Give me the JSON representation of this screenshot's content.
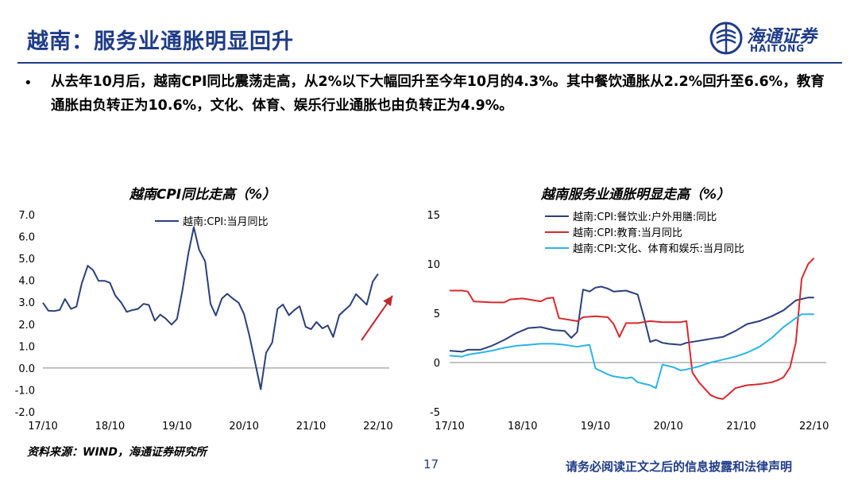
{
  "header": {
    "title": "越南：服务业通胀明显回升",
    "logo_name": "海通证券",
    "logo_en": "HAITONG"
  },
  "bullet": {
    "marker": "•",
    "text": "从去年10月后，越南CPI同比震荡走高，从2%以下大幅回升至今年10月的4.3%。其中餐饮通胀从2.2%回升至6.6%，教育通胀由负转正为10.6%，文化、体育、娱乐行业通胀也由负转正为4.9%。"
  },
  "footer": {
    "source": "资料来源：WIND，海通证券研究所",
    "page": "17",
    "disclaimer": "请务必阅读正文之后的信息披露和法律声明"
  },
  "colors": {
    "brand": "#1f3c88",
    "dark_blue": "#2b3f7a",
    "red": "#d9282f",
    "light_blue": "#2ab4e8",
    "arrow": "#c0282d"
  },
  "chart_data": [
    {
      "type": "line",
      "title": "越南CPI同比走高（%）",
      "xlabel": "",
      "ylabel": "",
      "ylim": [
        -2.0,
        7.0
      ],
      "yticks": [
        "7.0",
        "6.0",
        "5.0",
        "4.0",
        "3.0",
        "2.0",
        "1.0",
        "0.0",
        "-1.0",
        "-2.0"
      ],
      "categories": [
        "17/10",
        "18/10",
        "19/10",
        "20/10",
        "21/10",
        "22/10"
      ],
      "x_start": 2017.75,
      "x_end": 2022.917,
      "annotation": "arrow indicating upward trend",
      "series": [
        {
          "name": "越南:CPI:当月同比",
          "color": "#2b3f7a",
          "x": [
            2017.75,
            2017.83,
            2017.92,
            2018.0,
            2018.08,
            2018.17,
            2018.25,
            2018.33,
            2018.42,
            2018.5,
            2018.58,
            2018.67,
            2018.75,
            2018.83,
            2018.92,
            2019.0,
            2019.08,
            2019.17,
            2019.25,
            2019.33,
            2019.42,
            2019.5,
            2019.58,
            2019.67,
            2019.75,
            2019.83,
            2019.92,
            2020.0,
            2020.08,
            2020.17,
            2020.25,
            2020.33,
            2020.42,
            2020.5,
            2020.58,
            2020.67,
            2020.75,
            2020.83,
            2020.92,
            2021.0,
            2021.08,
            2021.17,
            2021.25,
            2021.33,
            2021.42,
            2021.5,
            2021.58,
            2021.67,
            2021.75,
            2021.83,
            2021.92,
            2022.0,
            2022.08,
            2022.17,
            2022.25,
            2022.33,
            2022.42,
            2022.5,
            2022.58,
            2022.67,
            2022.75
          ],
          "y": [
            2.98,
            2.62,
            2.6,
            2.65,
            3.15,
            2.7,
            2.8,
            3.86,
            4.67,
            4.46,
            3.98,
            3.98,
            3.89,
            3.31,
            2.98,
            2.56,
            2.64,
            2.7,
            2.93,
            2.88,
            2.16,
            2.44,
            2.26,
            1.98,
            2.24,
            3.52,
            5.23,
            6.43,
            5.4,
            4.87,
            2.93,
            2.4,
            3.17,
            3.39,
            3.18,
            2.98,
            2.47,
            1.48,
            0.19,
            -0.97,
            0.7,
            1.16,
            2.7,
            2.9,
            2.41,
            2.64,
            2.82,
            1.88,
            1.77,
            2.1,
            1.81,
            1.94,
            1.42,
            2.41,
            2.64,
            2.86,
            3.37,
            3.14,
            2.89,
            3.94,
            4.3
          ]
        }
      ]
    },
    {
      "type": "line",
      "title": "越南服务业通胀明显走高（%）",
      "xlabel": "",
      "ylabel": "",
      "ylim": [
        -5,
        15
      ],
      "yticks": [
        "15",
        "10",
        "5",
        "0",
        "-5"
      ],
      "categories": [
        "17/10",
        "18/10",
        "19/10",
        "20/10",
        "21/10",
        "22/10"
      ],
      "x_start": 2017.75,
      "x_end": 2022.917,
      "series": [
        {
          "name": "越南:CPI:餐饮业:户外用膳:同比",
          "color": "#2b3f7a",
          "x": [
            2017.75,
            2017.92,
            2018.0,
            2018.17,
            2018.33,
            2018.5,
            2018.67,
            2018.83,
            2019.0,
            2019.17,
            2019.33,
            2019.42,
            2019.5,
            2019.58,
            2019.67,
            2019.75,
            2019.83,
            2019.92,
            2020.0,
            2020.17,
            2020.33,
            2020.42,
            2020.5,
            2020.58,
            2020.67,
            2020.75,
            2020.92,
            2021.0,
            2021.17,
            2021.33,
            2021.5,
            2021.67,
            2021.83,
            2022.0,
            2022.17,
            2022.33,
            2022.5,
            2022.67,
            2022.75
          ],
          "y": [
            1.2,
            1.1,
            1.3,
            1.3,
            1.7,
            2.3,
            3.0,
            3.5,
            3.6,
            3.3,
            3.2,
            2.5,
            3.1,
            7.4,
            7.2,
            7.6,
            7.7,
            7.5,
            7.2,
            7.3,
            6.9,
            4.5,
            2.1,
            2.3,
            2.0,
            1.9,
            1.8,
            2.0,
            2.2,
            2.4,
            2.6,
            3.2,
            3.9,
            4.2,
            4.7,
            5.3,
            6.3,
            6.6,
            6.6
          ]
        },
        {
          "name": "越南:CPI:教育:当月同比",
          "color": "#d9282f",
          "x": [
            2017.75,
            2017.92,
            2018.0,
            2018.08,
            2018.33,
            2018.5,
            2018.58,
            2018.75,
            2019.0,
            2019.08,
            2019.17,
            2019.25,
            2019.5,
            2019.58,
            2019.75,
            2019.92,
            2020.0,
            2020.08,
            2020.17,
            2020.25,
            2020.33,
            2020.5,
            2020.67,
            2020.92,
            2021.0,
            2021.08,
            2021.17,
            2021.33,
            2021.42,
            2021.5,
            2021.58,
            2021.67,
            2021.83,
            2022.0,
            2022.17,
            2022.25,
            2022.33,
            2022.42,
            2022.5,
            2022.58,
            2022.67,
            2022.75
          ],
          "y": [
            7.3,
            7.3,
            7.2,
            6.2,
            6.1,
            6.1,
            6.4,
            6.5,
            6.2,
            6.5,
            6.6,
            4.5,
            4.2,
            4.6,
            4.7,
            4.6,
            3.9,
            2.6,
            4.0,
            4.0,
            4.0,
            4.2,
            4.1,
            4.1,
            4.2,
            -1.0,
            -2.0,
            -3.3,
            -3.6,
            -3.7,
            -3.2,
            -2.6,
            -2.3,
            -2.2,
            -2.0,
            -1.8,
            -1.5,
            -0.5,
            2.0,
            8.5,
            10.0,
            10.6
          ]
        },
        {
          "name": "越南:CPI:文化、体育和娱乐:当月同比",
          "color": "#2ab4e8",
          "x": [
            2017.75,
            2017.92,
            2018.0,
            2018.17,
            2018.33,
            2018.5,
            2018.67,
            2018.83,
            2019.0,
            2019.17,
            2019.33,
            2019.5,
            2019.58,
            2019.67,
            2019.75,
            2019.92,
            2020.0,
            2020.17,
            2020.25,
            2020.33,
            2020.5,
            2020.58,
            2020.67,
            2020.83,
            2020.92,
            2021.0,
            2021.17,
            2021.33,
            2021.5,
            2021.67,
            2021.83,
            2022.0,
            2022.17,
            2022.33,
            2022.5,
            2022.58,
            2022.67,
            2022.75
          ],
          "y": [
            0.7,
            0.6,
            0.8,
            1.0,
            1.2,
            1.5,
            1.7,
            1.8,
            1.9,
            1.9,
            1.8,
            1.6,
            1.7,
            1.8,
            -0.6,
            -1.2,
            -1.4,
            -1.6,
            -1.5,
            -2.0,
            -2.3,
            -2.6,
            -0.2,
            -0.5,
            -0.8,
            -0.7,
            -0.4,
            0.0,
            0.3,
            0.6,
            1.0,
            1.6,
            2.5,
            3.6,
            4.5,
            4.9,
            4.9,
            4.9
          ]
        }
      ]
    }
  ]
}
